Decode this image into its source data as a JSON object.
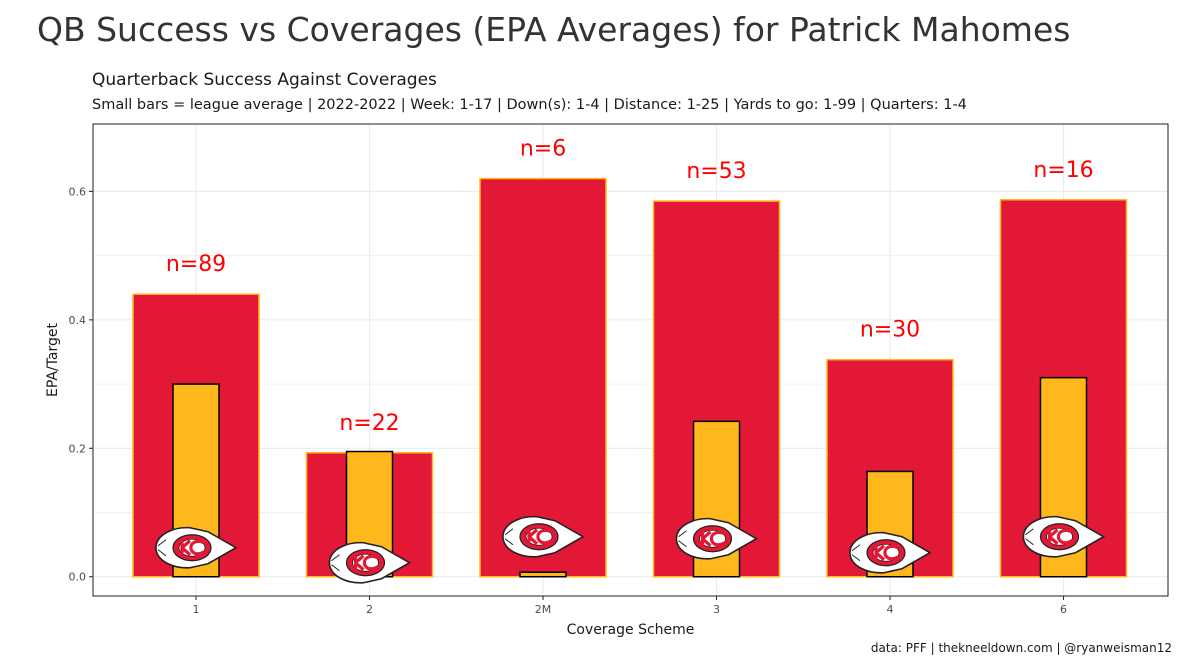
{
  "page_title": "QB Success vs Coverages (EPA Averages) for Patrick Mahomes",
  "caption": "data: PFF | thekneeldown.com | @ryanweisman12",
  "colors": {
    "player_bar": "#e31837",
    "player_bar_border": "#ffb81c",
    "league_bar": "#ffb81c",
    "league_bar_border": "#000000",
    "n_label": "#ff0000",
    "grid": "#ebebeb",
    "panel_border": "#333333"
  },
  "chart_data": {
    "type": "bar",
    "title": "Quarterback Success Against Coverages",
    "subtitle": "Small bars = league average | 2022-2022 | Week: 1-17 | Down(s): 1-4 | Distance: 1-25 | Yards to go: 1-99 | Quarters: 1-4",
    "xlabel": "Coverage Scheme",
    "ylabel": "EPA/Target",
    "categories": [
      "1",
      "2",
      "2M",
      "3",
      "4",
      "6"
    ],
    "ylim": [
      -0.03,
      0.705
    ],
    "yticks": [
      0.0,
      0.2,
      0.4,
      0.6
    ],
    "ytick_labels": [
      "0.0",
      "0.2",
      "0.4",
      "0.6"
    ],
    "grid": true,
    "series": [
      {
        "name": "Patrick Mahomes",
        "values": [
          0.44,
          0.193,
          0.62,
          0.585,
          0.338,
          0.587
        ]
      },
      {
        "name": "League average",
        "values": [
          0.3,
          0.195,
          0.007,
          0.242,
          0.164,
          0.31
        ]
      }
    ],
    "annotations": [
      "n=89",
      "n=22",
      "n=6",
      "n=53",
      "n=30",
      "n=16"
    ],
    "logo_icon": "chiefs-arrowhead-logo"
  }
}
